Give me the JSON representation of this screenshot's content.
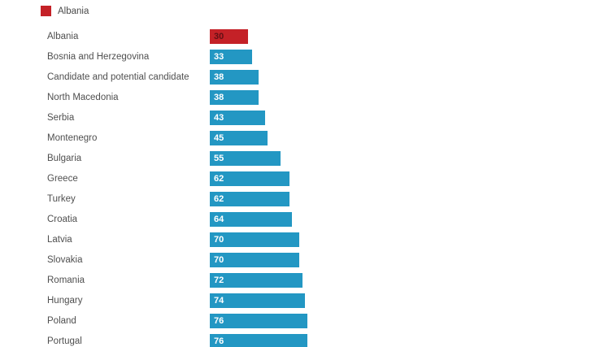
{
  "legend": {
    "label": "Albania"
  },
  "colors": {
    "highlight": "#c42127",
    "bar": "#2397c3",
    "category_text": "#4f4f4f",
    "legend_text": "#4a4a4a",
    "value_on_blue": "#ffffff",
    "value_on_red": "#611015",
    "background": "#ffffff"
  },
  "chart_data": {
    "type": "bar",
    "orientation": "horizontal",
    "title": "",
    "legend_entries": [
      "Albania"
    ],
    "highlighted_category": "Albania",
    "value_labels_shown": true,
    "grid": false,
    "categories": [
      "Albania",
      "Bosnia and Herzegovina",
      "Candidate and potential candidate",
      "North Macedonia",
      "Serbia",
      "Montenegro",
      "Bulgaria",
      "Greece",
      "Turkey",
      "Croatia",
      "Latvia",
      "Slovakia",
      "Romania",
      "Hungary",
      "Poland",
      "Portugal"
    ],
    "values": [
      30,
      33,
      38,
      38,
      43,
      45,
      55,
      62,
      62,
      64,
      70,
      70,
      72,
      74,
      76,
      76
    ],
    "xlim": [
      0,
      100
    ]
  }
}
